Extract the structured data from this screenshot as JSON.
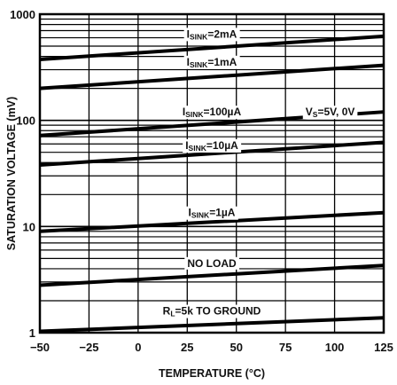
{
  "chart_data": {
    "type": "line",
    "xlabel": "TEMPERATURE (°C)",
    "ylabel": "SATURATION VOLTAGE (mV)",
    "xlim": [
      -50,
      125
    ],
    "ylim": [
      1,
      1000
    ],
    "yscale": "log",
    "x_ticks": [
      "-50",
      "-25",
      "0",
      "25",
      "50",
      "75",
      "100",
      "125"
    ],
    "x_tick_values": [
      -50,
      -25,
      0,
      25,
      50,
      75,
      100,
      125
    ],
    "y_ticks": [
      "1",
      "10",
      "100",
      "1000"
    ],
    "y_tick_values": [
      1,
      10,
      100,
      1000
    ],
    "grid": true,
    "annotation": {
      "main": "V",
      "sub": "S",
      "rest": "=5V, 0V"
    },
    "series": [
      {
        "main": "I",
        "sub": "SINK",
        "rest": "=2mA",
        "x": [
          -50,
          125
        ],
        "y": [
          375,
          620
        ],
        "label_x": 37.5,
        "label_y": 650
      },
      {
        "main": "I",
        "sub": "SINK",
        "rest": "=1mA",
        "x": [
          -50,
          125
        ],
        "y": [
          200,
          330
        ],
        "label_x": 37.5,
        "label_y": 355
      },
      {
        "main": "I",
        "sub": "SINK",
        "rest": "=100µA",
        "x": [
          -50,
          125
        ],
        "y": [
          72,
          120
        ],
        "label_x": 37.5,
        "label_y": 120
      },
      {
        "main": "I",
        "sub": "SINK",
        "rest": "=10µA",
        "x": [
          -50,
          125
        ],
        "y": [
          38,
          62
        ],
        "label_x": 37.5,
        "label_y": 58
      },
      {
        "main": "I",
        "sub": "SINK",
        "rest": "=1µA",
        "x": [
          -50,
          125
        ],
        "y": [
          9,
          13.5
        ],
        "label_x": 37.5,
        "label_y": 13.5
      },
      {
        "main": "",
        "sub": "",
        "rest": "NO LOAD",
        "x": [
          -50,
          125
        ],
        "y": [
          2.8,
          4.3
        ],
        "label_x": 37.5,
        "label_y": 4.5
      },
      {
        "main": "R",
        "sub": "L",
        "rest": "=5k TO GROUND",
        "x": [
          -50,
          125
        ],
        "y": [
          1.03,
          1.38
        ],
        "label_x": 37.5,
        "label_y": 1.6
      }
    ]
  }
}
